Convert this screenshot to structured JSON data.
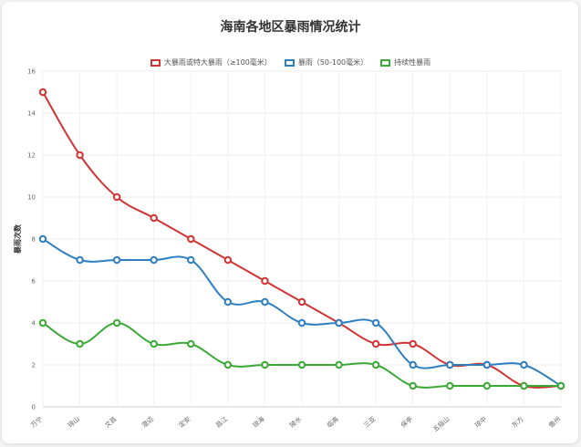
{
  "chart_data": {
    "type": "line",
    "title": "海南各地区暴雨情况统计",
    "xlabel": "",
    "ylabel": "暴雨次数",
    "ylim": [
      0,
      16
    ],
    "yticks": [
      0,
      2,
      4,
      6,
      8,
      10,
      12,
      14,
      16
    ],
    "grid": true,
    "legend_position": "top-center",
    "categories": [
      "万宁",
      "琼山",
      "文昌",
      "澄迈",
      "定安",
      "昌江",
      "琼海",
      "陵水",
      "临高",
      "三亚",
      "保亭",
      "五指山",
      "琼中",
      "东方",
      "儋州"
    ],
    "series": [
      {
        "name": "大暴雨或特大暴雨（≥100毫米）",
        "color": "#d03434",
        "values": [
          15,
          12,
          10,
          9,
          8,
          7,
          6,
          5,
          4,
          3,
          3,
          2,
          2,
          1,
          1
        ]
      },
      {
        "name": "暴雨（50-100毫米）",
        "color": "#2e7fbf",
        "values": [
          8,
          7,
          7,
          7,
          7,
          5,
          5,
          4,
          4,
          4,
          2,
          2,
          2,
          2,
          1
        ]
      },
      {
        "name": "持续性暴雨",
        "color": "#3aaa35",
        "values": [
          4,
          3,
          4,
          3,
          3,
          2,
          2,
          2,
          2,
          2,
          1,
          1,
          1,
          1,
          1
        ]
      }
    ]
  }
}
